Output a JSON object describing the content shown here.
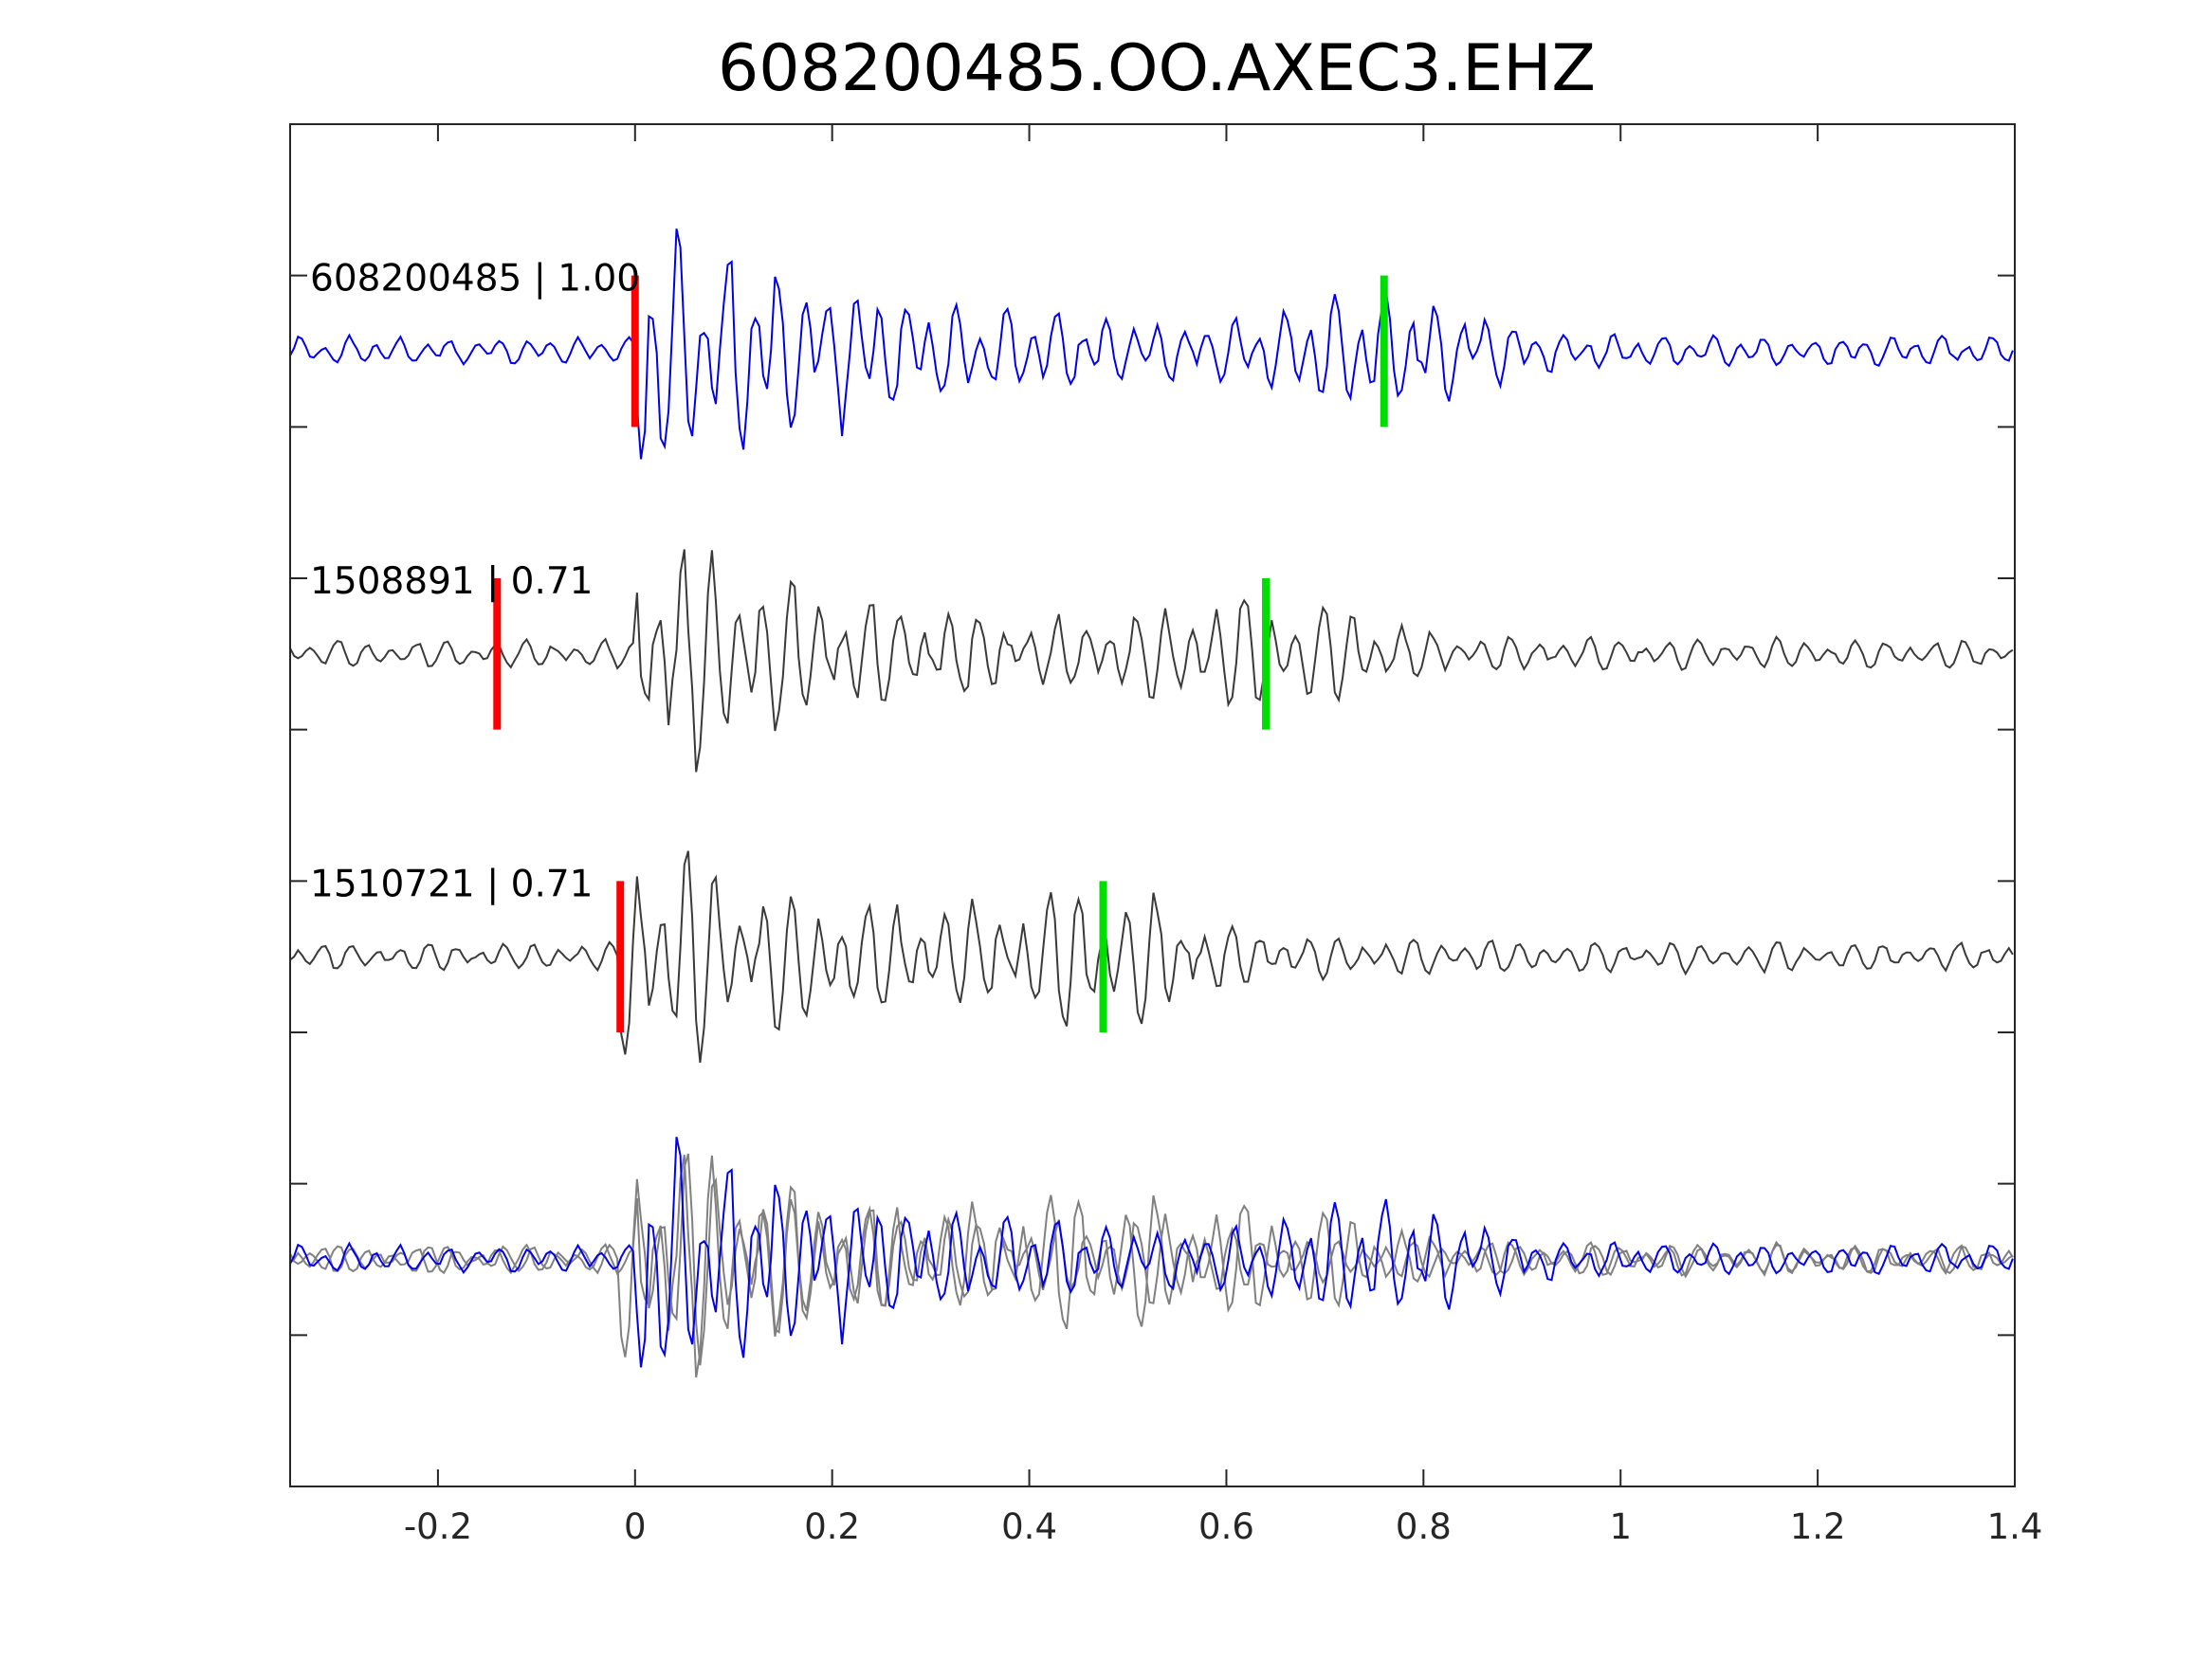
{
  "chart_data": {
    "type": "line",
    "title": "608200485.OO.AXEC3.EHZ",
    "xlabel": "",
    "ylabel": "",
    "xlim": [
      -0.35,
      1.4
    ],
    "xticks": [
      -0.2,
      0,
      0.2,
      0.4,
      0.6,
      0.8,
      1,
      1.2,
      1.4
    ],
    "xtick_labels": [
      "-0.2",
      "0",
      "0.2",
      "0.4",
      "0.6",
      "0.8",
      "1",
      "1.2",
      "1.4"
    ],
    "ylim": [
      -4.5,
      4.5
    ],
    "yticks": [
      -3.5,
      -2.5,
      -1.5,
      -0.5,
      0.5,
      1.5,
      2.5,
      3.5
    ],
    "grid": false,
    "colors": {
      "target": "#0000ee",
      "neighbor": "#3a3a3a",
      "overlay_neighbor": "#808080",
      "p_pick": "#ff0000",
      "s_pick": "#00dd00"
    },
    "series": [
      {
        "name": "608200485 | 1.00",
        "label": "608200485 | 1.00",
        "color": "target",
        "offset": 3,
        "p_pick": 0.0,
        "s_pick": 0.76,
        "onset": 0.0,
        "amp": 0.95,
        "f1": 39,
        "f2": 21,
        "seed": 1
      },
      {
        "name": "1508891 | 0.71",
        "label": "1508891 | 0.71",
        "color": "neighbor",
        "offset": 1,
        "p_pick": -0.14,
        "s_pick": 0.64,
        "onset": 0.0,
        "amp": 0.8,
        "f1": 37,
        "f2": 26,
        "seed": 2
      },
      {
        "name": "1510721 | 0.71",
        "label": "1510721 | 0.71",
        "color": "neighbor",
        "offset": -1,
        "p_pick": -0.015,
        "s_pick": 0.475,
        "onset": -0.015,
        "amp": 0.8,
        "f1": 38,
        "f2": 27,
        "seed": 3
      }
    ],
    "overlay": {
      "offset": -3,
      "members": [
        "608200485 | 1.00",
        "1508891 | 0.71",
        "1510721 | 0.71"
      ]
    }
  }
}
